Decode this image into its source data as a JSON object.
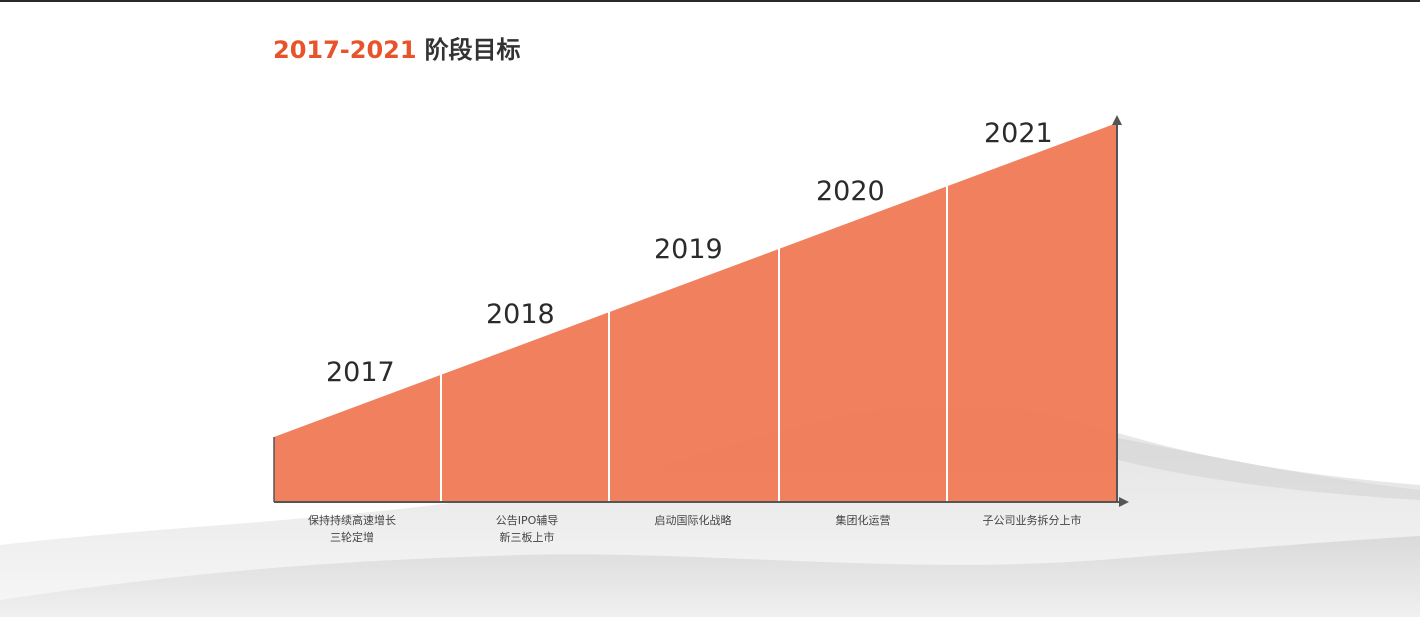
{
  "title": {
    "years": "2017-2021",
    "text": "阶段目标"
  },
  "colors": {
    "accent": "#e8532b",
    "fill": "#f07b58",
    "axis": "#555555"
  },
  "stages": [
    {
      "year": "2017",
      "line1": "保持持续高速增长",
      "line2": "三轮定增"
    },
    {
      "year": "2018",
      "line1": "公告IPO辅导",
      "line2": "新三板上市"
    },
    {
      "year": "2019",
      "line1": "启动国际化战略",
      "line2": ""
    },
    {
      "year": "2020",
      "line1": "集团化运营",
      "line2": ""
    },
    {
      "year": "2021",
      "line1": "子公司业务拆分上市",
      "line2": ""
    }
  ]
}
